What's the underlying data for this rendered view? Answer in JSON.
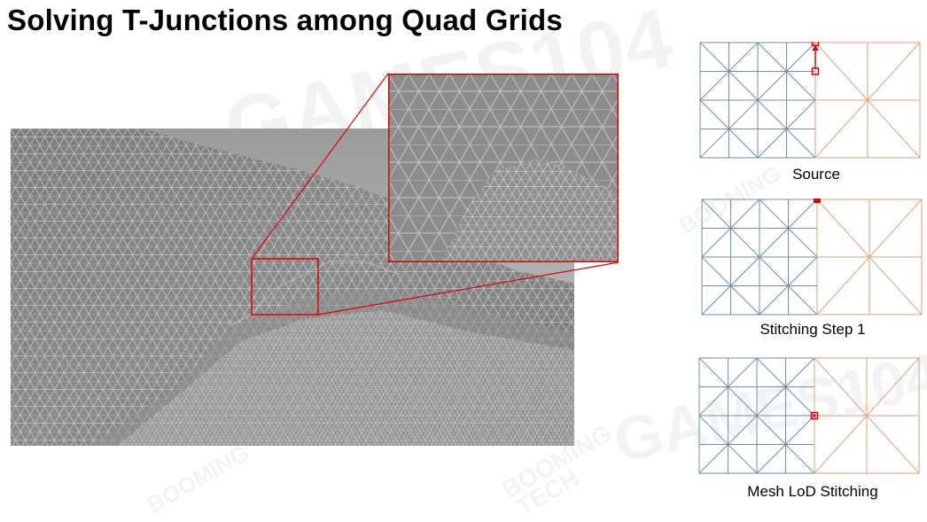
{
  "title": "Solving T-Junctions among Quad Grids",
  "watermark": {
    "large": "GAMES104",
    "logo_line1": "BOOMING",
    "logo_line2": "TECH"
  },
  "figure": {
    "terrain_alt": "wireframe terrain mesh",
    "zoom_alt": "zoomed-in mesh detail"
  },
  "colors": {
    "left_grid": "#6f8fa6",
    "right_grid": "#e0a27a",
    "highlight": "#e00000"
  },
  "diagrams": [
    {
      "caption": "Source"
    },
    {
      "caption": "Stitching Step 1"
    },
    {
      "caption": "Mesh LoD Stitching"
    }
  ]
}
